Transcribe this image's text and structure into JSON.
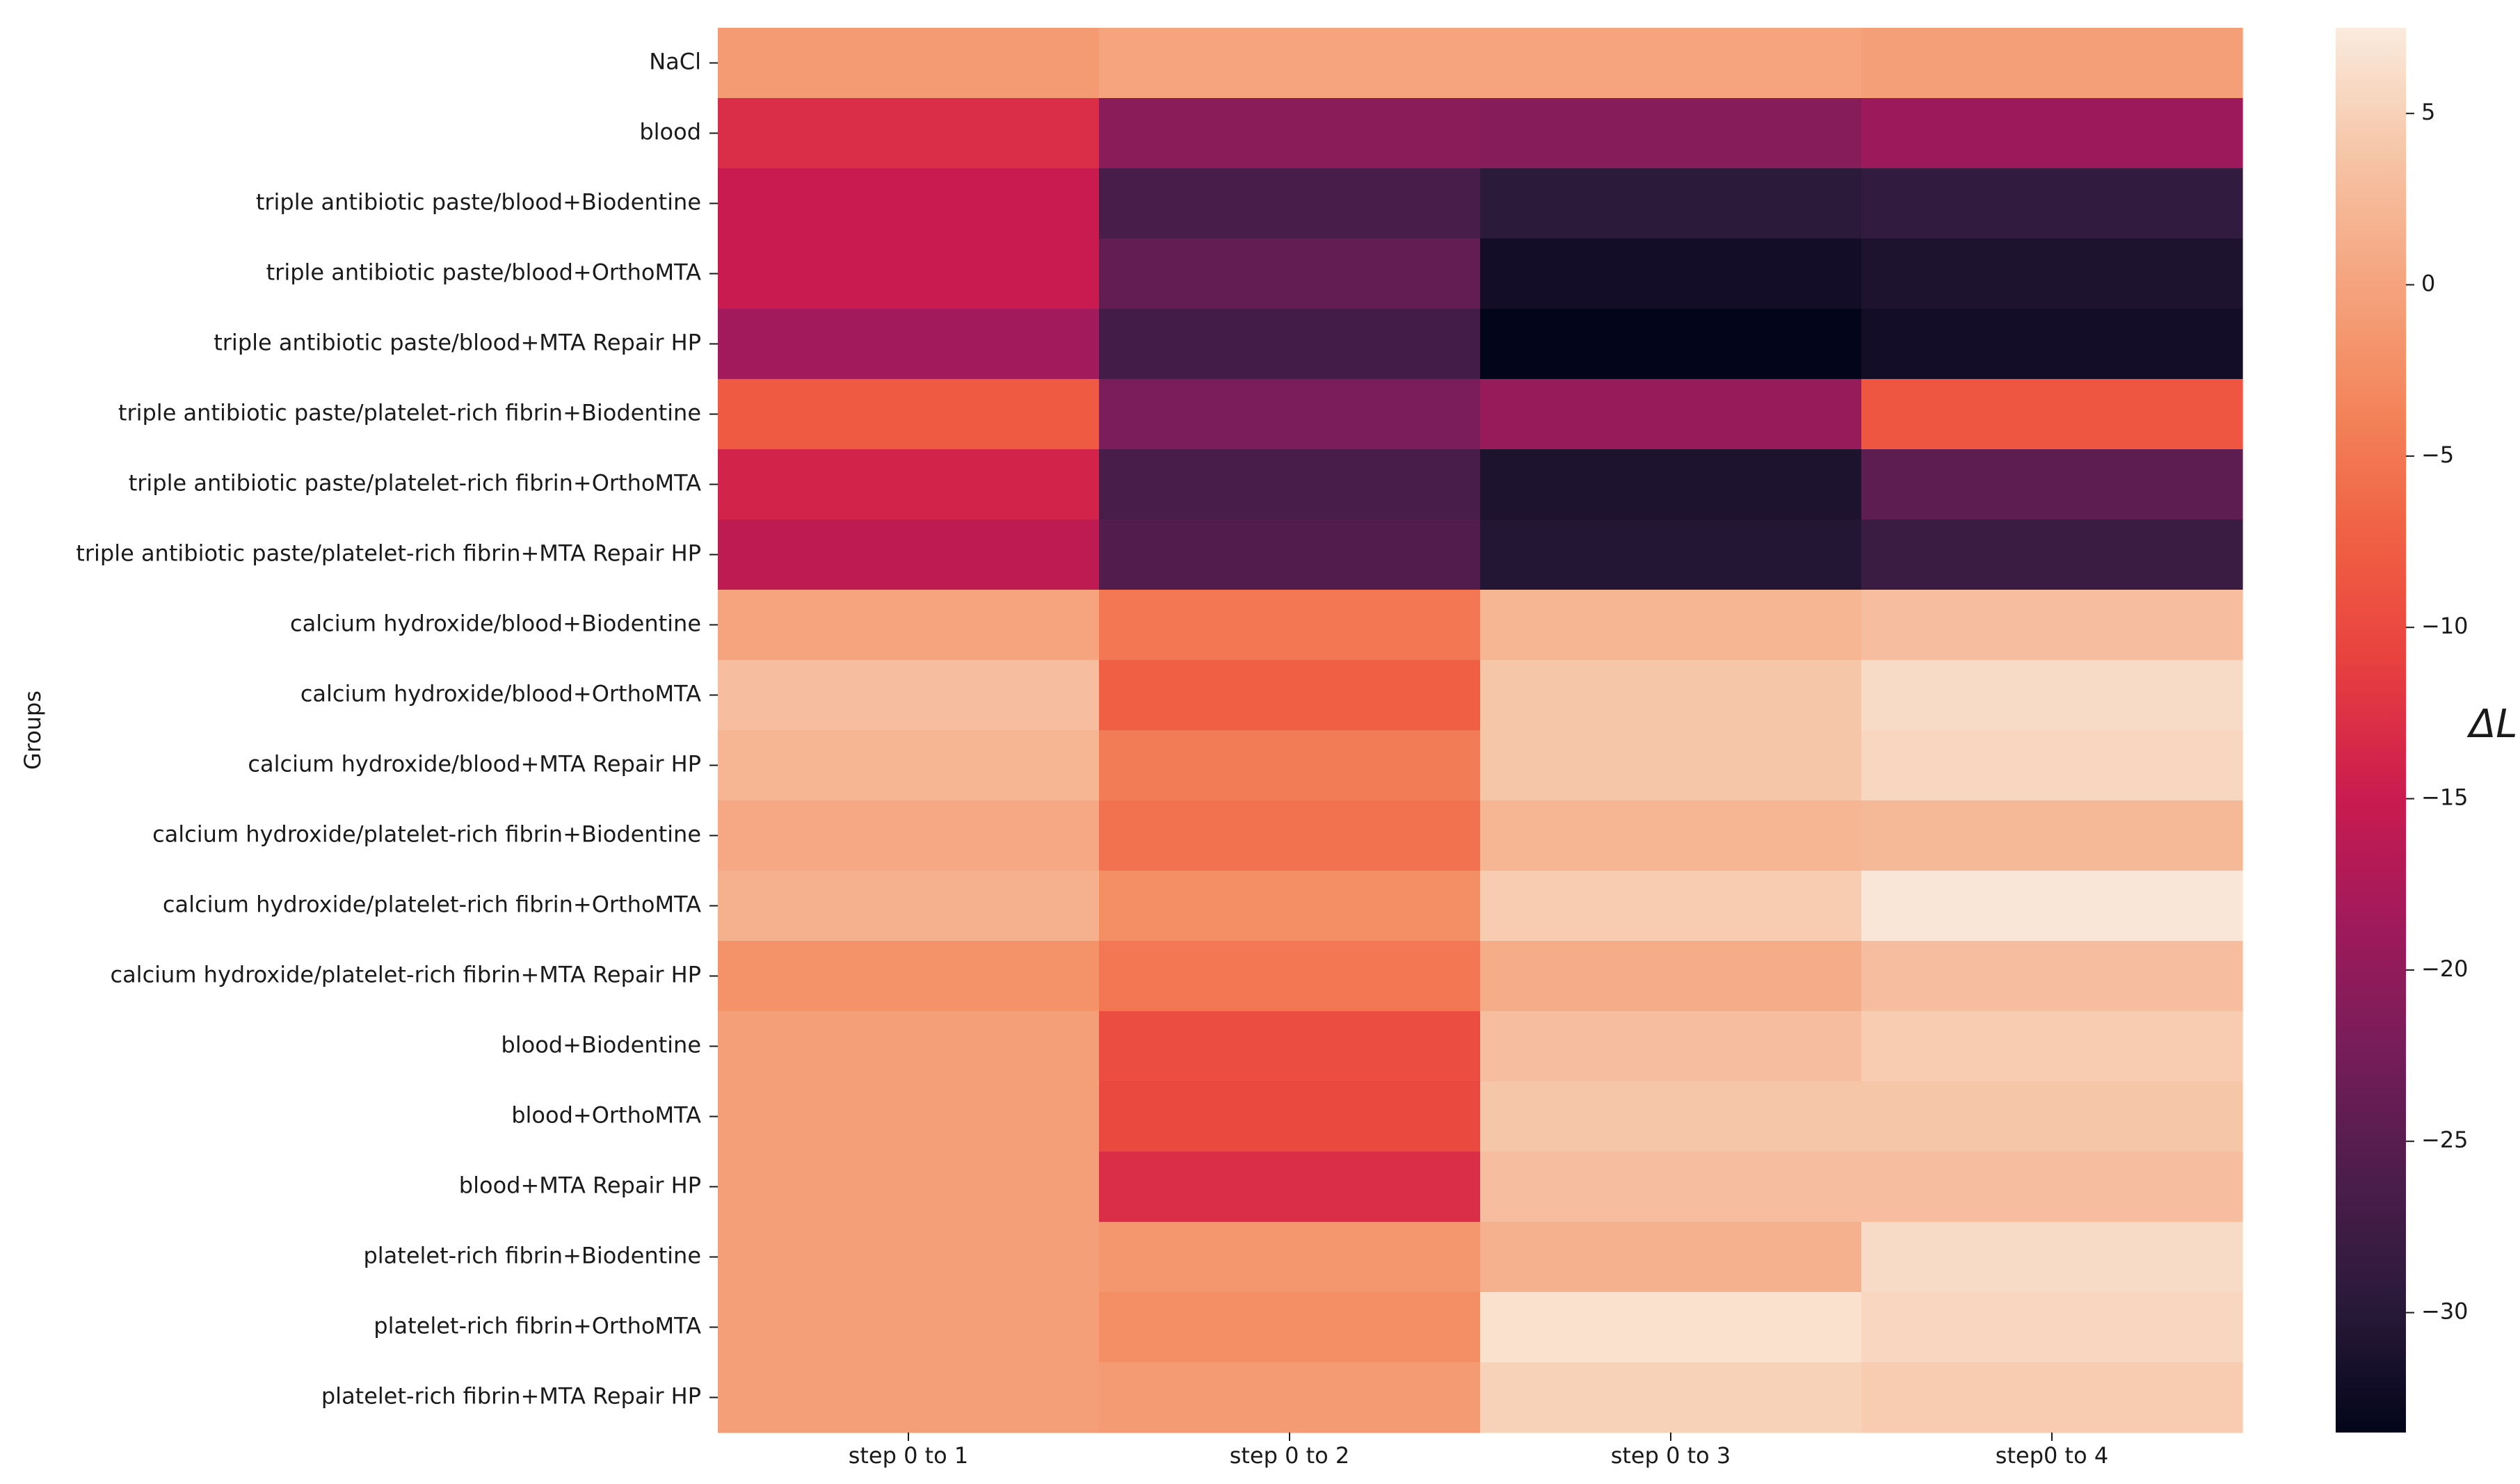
{
  "chart_data": {
    "type": "heatmap",
    "ylabel": "Groups",
    "colorbar_label": "ΔL",
    "x_categories": [
      "step 0 to 1",
      "step 0 to 2",
      "step 0 to 3",
      "step0 to 4"
    ],
    "y_categories": [
      "NaCl",
      "blood",
      "triple antibiotic paste/blood+Biodentine",
      "triple antibiotic paste/blood+OrthoMTA",
      "triple antibiotic paste/blood+MTA Repair HP",
      "triple antibiotic paste/platelet-rich fibrin+Biodentine",
      "triple antibiotic paste/platelet-rich fibrin+OrthoMTA",
      "triple antibiotic paste/platelet-rich fibrin+MTA Repair HP",
      "calcium hydroxide/blood+Biodentine",
      "calcium hydroxide/blood+OrthoMTA",
      "calcium hydroxide/blood+MTA Repair HP",
      "calcium hydroxide/platelet-rich fibrin+Biodentine",
      "calcium hydroxide/platelet-rich fibrin+OrthoMTA",
      "calcium hydroxide/platelet-rich fibrin+MTA Repair HP",
      "blood+Biodentine",
      "blood+OrthoMTA",
      "blood+MTA Repair HP",
      "platelet-rich fibrin+Biodentine",
      "platelet-rich fibrin+OrthoMTA",
      "platelet-rich fibrin+MTA Repair HP"
    ],
    "values": [
      [
        -1.0,
        0.0,
        0.0,
        -0.5
      ],
      [
        -13.0,
        -20.5,
        -21.0,
        -19.0
      ],
      [
        -15.0,
        -26.5,
        -29.5,
        -29.0
      ],
      [
        -15.0,
        -24.0,
        -32.0,
        -31.0
      ],
      [
        -18.5,
        -27.0,
        -33.5,
        -32.0
      ],
      [
        -8.0,
        -22.0,
        -19.5,
        -8.5
      ],
      [
        -14.0,
        -26.5,
        -31.0,
        -24.5
      ],
      [
        -16.0,
        -25.5,
        -30.5,
        -28.0
      ],
      [
        0.0,
        -5.0,
        2.0,
        3.0
      ],
      [
        3.0,
        -7.5,
        4.0,
        6.0
      ],
      [
        2.0,
        -4.5,
        4.0,
        5.5
      ],
      [
        0.5,
        -5.5,
        2.0,
        2.5
      ],
      [
        1.5,
        -2.5,
        4.5,
        7.0
      ],
      [
        -2.0,
        -5.0,
        1.0,
        3.0
      ],
      [
        -0.5,
        -9.5,
        3.0,
        4.5
      ],
      [
        -0.5,
        -10.0,
        4.0,
        4.0
      ],
      [
        -0.5,
        -13.0,
        3.0,
        3.0
      ],
      [
        -0.5,
        -1.5,
        1.5,
        6.0
      ],
      [
        -0.5,
        -2.5,
        6.5,
        5.5
      ],
      [
        -0.5,
        -1.0,
        5.0,
        4.5
      ]
    ],
    "vmin": -33.5,
    "vmax": 7.5,
    "colorbar_ticks": [
      "5",
      "0",
      "−5",
      "−10",
      "−15",
      "−20",
      "−25",
      "−30"
    ],
    "colorbar_tick_values": [
      5,
      0,
      -5,
      -10,
      -15,
      -20,
      -25,
      -30
    ],
    "colormap": "rocket",
    "colormap_stops": [
      "#03051a",
      "#2a1a3a",
      "#4c1d4b",
      "#771d5a",
      "#a11a5b",
      "#cb1b4f",
      "#e83f3f",
      "#f06043",
      "#f3845a",
      "#f5a47e",
      "#f6c4a6",
      "#faebdd"
    ]
  }
}
